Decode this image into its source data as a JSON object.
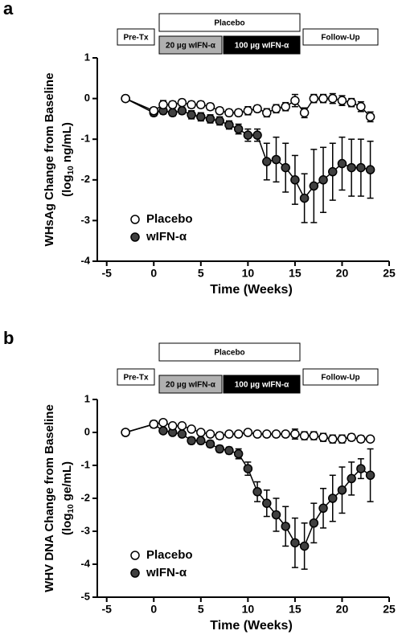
{
  "chart_data": [
    {
      "type": "line",
      "panel": "a",
      "phases": [
        "Pre-Tx",
        "Placebo",
        "20 µg wIFN-α",
        "100 µg wIFN-α",
        "Follow-Up"
      ],
      "ylabel": "WHsAg Change from Baseline",
      "ylabel_unit": {
        "prefix": "(log",
        "sub": "10",
        "suffix": " ng/mL)"
      },
      "xlabel": "Time (Weeks)",
      "x": [
        -3,
        0,
        1,
        2,
        3,
        4,
        5,
        6,
        7,
        8,
        9,
        10,
        11,
        12,
        13,
        14,
        15,
        16,
        17,
        18,
        19,
        20,
        21,
        22,
        23
      ],
      "xlim": [
        -6,
        25
      ],
      "xticks": [
        -5,
        0,
        5,
        10,
        15,
        20,
        25
      ],
      "ylim": [
        -4,
        1
      ],
      "yticks": [
        1,
        0,
        -1,
        -2,
        -3,
        -4
      ],
      "legend": "lower left",
      "series": [
        {
          "name": "wIFN-α",
          "color": "#000000",
          "fill": "#404040",
          "values": [
            0,
            -0.35,
            -0.3,
            -0.35,
            -0.3,
            -0.4,
            -0.45,
            -0.5,
            -0.55,
            -0.65,
            -0.75,
            -0.9,
            -0.9,
            -1.55,
            -1.5,
            -1.7,
            -2.0,
            -2.45,
            -2.15,
            -2.0,
            -1.8,
            -1.6,
            -1.7,
            -1.7,
            -1.75
          ],
          "errors": [
            null,
            0.08,
            0.08,
            0.08,
            0.08,
            0.1,
            0.1,
            0.1,
            0.1,
            0.1,
            0.12,
            0.15,
            0.15,
            0.45,
            0.55,
            0.6,
            0.6,
            0.6,
            0.9,
            0.8,
            0.7,
            0.65,
            0.7,
            0.7,
            0.7
          ]
        },
        {
          "name": "Placebo",
          "color": "#000000",
          "fill": "#ffffff",
          "values": [
            0,
            -0.3,
            -0.15,
            -0.15,
            -0.1,
            -0.15,
            -0.15,
            -0.2,
            -0.3,
            -0.35,
            -0.35,
            -0.3,
            -0.25,
            -0.35,
            -0.25,
            -0.2,
            -0.05,
            -0.35,
            0.0,
            0.0,
            0.0,
            -0.05,
            -0.1,
            -0.2,
            -0.45
          ],
          "errors": [
            null,
            0.08,
            0.1,
            0.08,
            0.08,
            0.08,
            0.08,
            0.08,
            0.08,
            0.08,
            0.08,
            0.1,
            0.08,
            0.1,
            0.1,
            0.1,
            0.15,
            0.12,
            0.1,
            0.1,
            0.12,
            0.12,
            0.1,
            0.12,
            0.12
          ]
        }
      ]
    },
    {
      "type": "line",
      "panel": "b",
      "phases": [
        "Pre-Tx",
        "Placebo",
        "20 µg wIFN-α",
        "100 µg wIFN-α",
        "Follow-Up"
      ],
      "ylabel": "WHV DNA Change from Baseline",
      "ylabel_unit": {
        "prefix": "(log",
        "sub": "10",
        "suffix": " ge/mL)"
      },
      "xlabel": "Time (Weeks)",
      "x": [
        -3,
        0,
        1,
        2,
        3,
        4,
        5,
        6,
        7,
        8,
        9,
        10,
        11,
        12,
        13,
        14,
        15,
        16,
        17,
        18,
        19,
        20,
        21,
        22,
        23
      ],
      "xlim": [
        -6,
        25
      ],
      "xticks": [
        -5,
        0,
        5,
        10,
        15,
        20,
        25
      ],
      "ylim": [
        -5,
        1
      ],
      "yticks": [
        1,
        0,
        -1,
        -2,
        -3,
        -4,
        -5
      ],
      "legend": "lower left",
      "series": [
        {
          "name": "wIFN-α",
          "color": "#000000",
          "fill": "#404040",
          "values": [
            0,
            0.25,
            0.05,
            0.0,
            -0.05,
            -0.25,
            -0.25,
            -0.35,
            -0.5,
            -0.55,
            -0.65,
            -1.1,
            -1.8,
            -2.15,
            -2.5,
            -2.85,
            -3.35,
            -3.45,
            -2.75,
            -2.3,
            -2.0,
            -1.75,
            -1.4,
            -1.1,
            -1.3
          ],
          "errors": [
            null,
            0.1,
            0.08,
            0.08,
            0.08,
            0.1,
            0.1,
            0.1,
            0.1,
            0.1,
            0.15,
            0.2,
            0.3,
            0.4,
            0.5,
            0.6,
            0.75,
            0.7,
            0.6,
            0.6,
            0.7,
            0.7,
            0.5,
            0.3,
            0.8
          ]
        },
        {
          "name": "Placebo",
          "color": "#000000",
          "fill": "#ffffff",
          "values": [
            0,
            0.25,
            0.3,
            0.2,
            0.2,
            0.1,
            0.0,
            -0.05,
            -0.1,
            -0.05,
            -0.05,
            0.0,
            -0.05,
            -0.05,
            -0.05,
            -0.05,
            -0.05,
            -0.1,
            -0.1,
            -0.15,
            -0.2,
            -0.2,
            -0.15,
            -0.2,
            -0.2
          ],
          "errors": [
            null,
            0.1,
            0.08,
            0.08,
            0.08,
            0.08,
            0.08,
            0.08,
            0.1,
            0.08,
            0.08,
            0.08,
            0.08,
            0.08,
            0.08,
            0.08,
            0.15,
            0.12,
            0.12,
            0.12,
            0.12,
            0.12,
            0.1,
            0.1,
            0.08
          ]
        }
      ]
    }
  ]
}
